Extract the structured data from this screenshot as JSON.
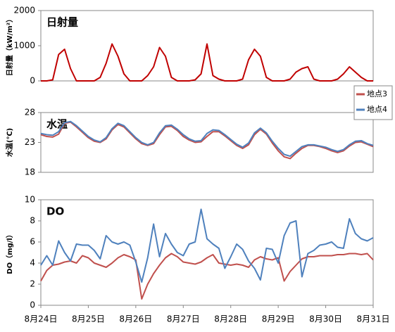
{
  "chart_data": [
    {
      "type": "line",
      "title": "日射量",
      "y_label": "日射量（kW/m²）",
      "x": [
        0,
        0.125,
        0.25,
        0.375,
        0.5,
        0.625,
        0.75,
        0.875,
        1,
        1.125,
        1.25,
        1.375,
        1.5,
        1.625,
        1.75,
        1.875,
        2,
        2.125,
        2.25,
        2.375,
        2.5,
        2.625,
        2.75,
        2.875,
        3,
        3.125,
        3.25,
        3.375,
        3.5,
        3.625,
        3.75,
        3.875,
        4,
        4.125,
        4.25,
        4.375,
        4.5,
        4.625,
        4.75,
        4.875,
        5,
        5.125,
        5.25,
        5.375,
        5.5,
        5.625,
        5.75,
        5.875,
        6,
        6.125,
        6.25,
        6.375,
        6.5,
        6.625,
        6.75,
        6.875,
        7
      ],
      "series": [
        {
          "color": "#c00000",
          "values": [
            0,
            0,
            30,
            750,
            900,
            350,
            0,
            0,
            0,
            0,
            100,
            500,
            1050,
            700,
            200,
            0,
            0,
            0,
            150,
            400,
            950,
            700,
            100,
            0,
            0,
            0,
            30,
            200,
            1050,
            150,
            50,
            0,
            0,
            0,
            50,
            600,
            900,
            700,
            100,
            0,
            0,
            0,
            50,
            250,
            350,
            400,
            50,
            0,
            0,
            0,
            50,
            200,
            400,
            250,
            100,
            0,
            0
          ]
        }
      ],
      "xlim": [
        0,
        7
      ],
      "ylim": [
        0,
        2000
      ],
      "yticks": [
        0,
        1000,
        2000
      ]
    },
    {
      "type": "line",
      "title": "水温",
      "y_label": "水温(℃)",
      "x": [
        0,
        0.125,
        0.25,
        0.375,
        0.5,
        0.625,
        0.75,
        0.875,
        1,
        1.125,
        1.25,
        1.375,
        1.5,
        1.625,
        1.75,
        1.875,
        2,
        2.125,
        2.25,
        2.375,
        2.5,
        2.625,
        2.75,
        2.875,
        3,
        3.125,
        3.25,
        3.375,
        3.5,
        3.625,
        3.75,
        3.875,
        4,
        4.125,
        4.25,
        4.375,
        4.5,
        4.625,
        4.75,
        4.875,
        5,
        5.125,
        5.25,
        5.375,
        5.5,
        5.625,
        5.75,
        5.875,
        6,
        6.125,
        6.25,
        6.375,
        6.5,
        6.625,
        6.75,
        6.875,
        7
      ],
      "series": [
        {
          "name": "地点3",
          "color": "#c0504d",
          "values": [
            24.3,
            24.0,
            23.9,
            24.4,
            26.2,
            26.4,
            25.6,
            24.7,
            23.8,
            23.2,
            23.0,
            23.6,
            25.1,
            26.0,
            25.6,
            24.6,
            23.6,
            22.8,
            22.5,
            22.8,
            24.3,
            25.6,
            25.7,
            25.0,
            24.0,
            23.4,
            23.0,
            23.1,
            24.0,
            24.8,
            24.8,
            24.1,
            23.3,
            22.5,
            22.0,
            22.6,
            24.3,
            25.2,
            24.4,
            22.9,
            21.6,
            20.6,
            20.3,
            21.2,
            22.0,
            22.5,
            22.5,
            22.3,
            22.0,
            21.6,
            21.3,
            21.6,
            22.4,
            23.0,
            23.1,
            22.7,
            22.3
          ]
        },
        {
          "name": "地点4",
          "color": "#4f81bd",
          "values": [
            24.5,
            24.3,
            24.2,
            24.8,
            26.3,
            26.5,
            25.8,
            24.9,
            24.0,
            23.4,
            23.1,
            23.8,
            25.3,
            26.2,
            25.8,
            24.8,
            23.8,
            23.0,
            22.6,
            23.0,
            24.6,
            25.8,
            25.9,
            25.2,
            24.3,
            23.6,
            23.2,
            23.3,
            24.5,
            25.1,
            25.0,
            24.3,
            23.5,
            22.7,
            22.2,
            22.9,
            24.6,
            25.4,
            24.6,
            23.2,
            22.0,
            21.0,
            20.7,
            21.5,
            22.3,
            22.6,
            22.6,
            22.4,
            22.2,
            21.8,
            21.5,
            21.8,
            22.6,
            23.2,
            23.3,
            22.8,
            22.5
          ]
        }
      ],
      "xlim": [
        0,
        7
      ],
      "ylim": [
        18,
        28
      ],
      "yticks": [
        18,
        23,
        28
      ],
      "legend": "right"
    },
    {
      "type": "line",
      "title": "DO",
      "y_label": "DO（mg/l）",
      "x": [
        0,
        0.125,
        0.25,
        0.375,
        0.5,
        0.625,
        0.75,
        0.875,
        1,
        1.125,
        1.25,
        1.375,
        1.5,
        1.625,
        1.75,
        1.875,
        2,
        2.125,
        2.25,
        2.375,
        2.5,
        2.625,
        2.75,
        2.875,
        3,
        3.125,
        3.25,
        3.375,
        3.5,
        3.625,
        3.75,
        3.875,
        4,
        4.125,
        4.25,
        4.375,
        4.5,
        4.625,
        4.75,
        4.875,
        5,
        5.125,
        5.25,
        5.375,
        5.5,
        5.625,
        5.75,
        5.875,
        6,
        6.125,
        6.25,
        6.375,
        6.5,
        6.625,
        6.75,
        6.875,
        7
      ],
      "series": [
        {
          "name": "地点3",
          "color": "#c0504d",
          "values": [
            2.3,
            3.3,
            3.8,
            3.9,
            4.1,
            4.2,
            4.0,
            4.7,
            4.5,
            4.0,
            3.8,
            3.6,
            4.0,
            4.5,
            4.8,
            4.6,
            4.3,
            0.6,
            2.0,
            3.0,
            3.8,
            4.5,
            4.9,
            4.6,
            4.1,
            4.0,
            3.9,
            4.1,
            4.5,
            4.8,
            4.0,
            3.9,
            3.8,
            3.9,
            3.8,
            3.6,
            4.3,
            4.6,
            4.4,
            4.3,
            4.5,
            2.3,
            3.2,
            3.8,
            4.4,
            4.6,
            4.6,
            4.7,
            4.7,
            4.7,
            4.8,
            4.8,
            4.9,
            4.9,
            4.8,
            4.9,
            4.3
          ]
        },
        {
          "name": "地点4",
          "color": "#4f81bd",
          "values": [
            3.8,
            4.7,
            3.8,
            6.1,
            5.0,
            4.2,
            5.8,
            5.7,
            5.7,
            5.2,
            4.4,
            6.6,
            6.0,
            5.8,
            6.0,
            5.7,
            4.1,
            2.2,
            4.5,
            7.7,
            4.6,
            6.8,
            5.8,
            5.0,
            4.7,
            5.8,
            6.0,
            9.1,
            6.3,
            5.8,
            5.4,
            3.5,
            4.6,
            5.8,
            5.3,
            4.2,
            3.5,
            2.4,
            5.4,
            5.3,
            4.0,
            6.6,
            7.8,
            8.0,
            2.7,
            4.9,
            5.2,
            5.7,
            5.8,
            6.0,
            5.5,
            5.4,
            8.2,
            6.8,
            6.3,
            6.1,
            6.4
          ]
        }
      ],
      "xlim": [
        0,
        7
      ],
      "ylim": [
        0,
        10
      ],
      "yticks": [
        0,
        2,
        4,
        6,
        8,
        10
      ],
      "xticks": [
        {
          "value": 0,
          "label": "8月24日"
        },
        {
          "value": 1,
          "label": "8月25日"
        },
        {
          "value": 2,
          "label": "8月26日"
        },
        {
          "value": 3,
          "label": "8月27日"
        },
        {
          "value": 4,
          "label": "8月28日"
        },
        {
          "value": 5,
          "label": "8月29日"
        },
        {
          "value": 6,
          "label": "8月30日"
        },
        {
          "value": 7,
          "label": "8月31日"
        }
      ]
    }
  ]
}
